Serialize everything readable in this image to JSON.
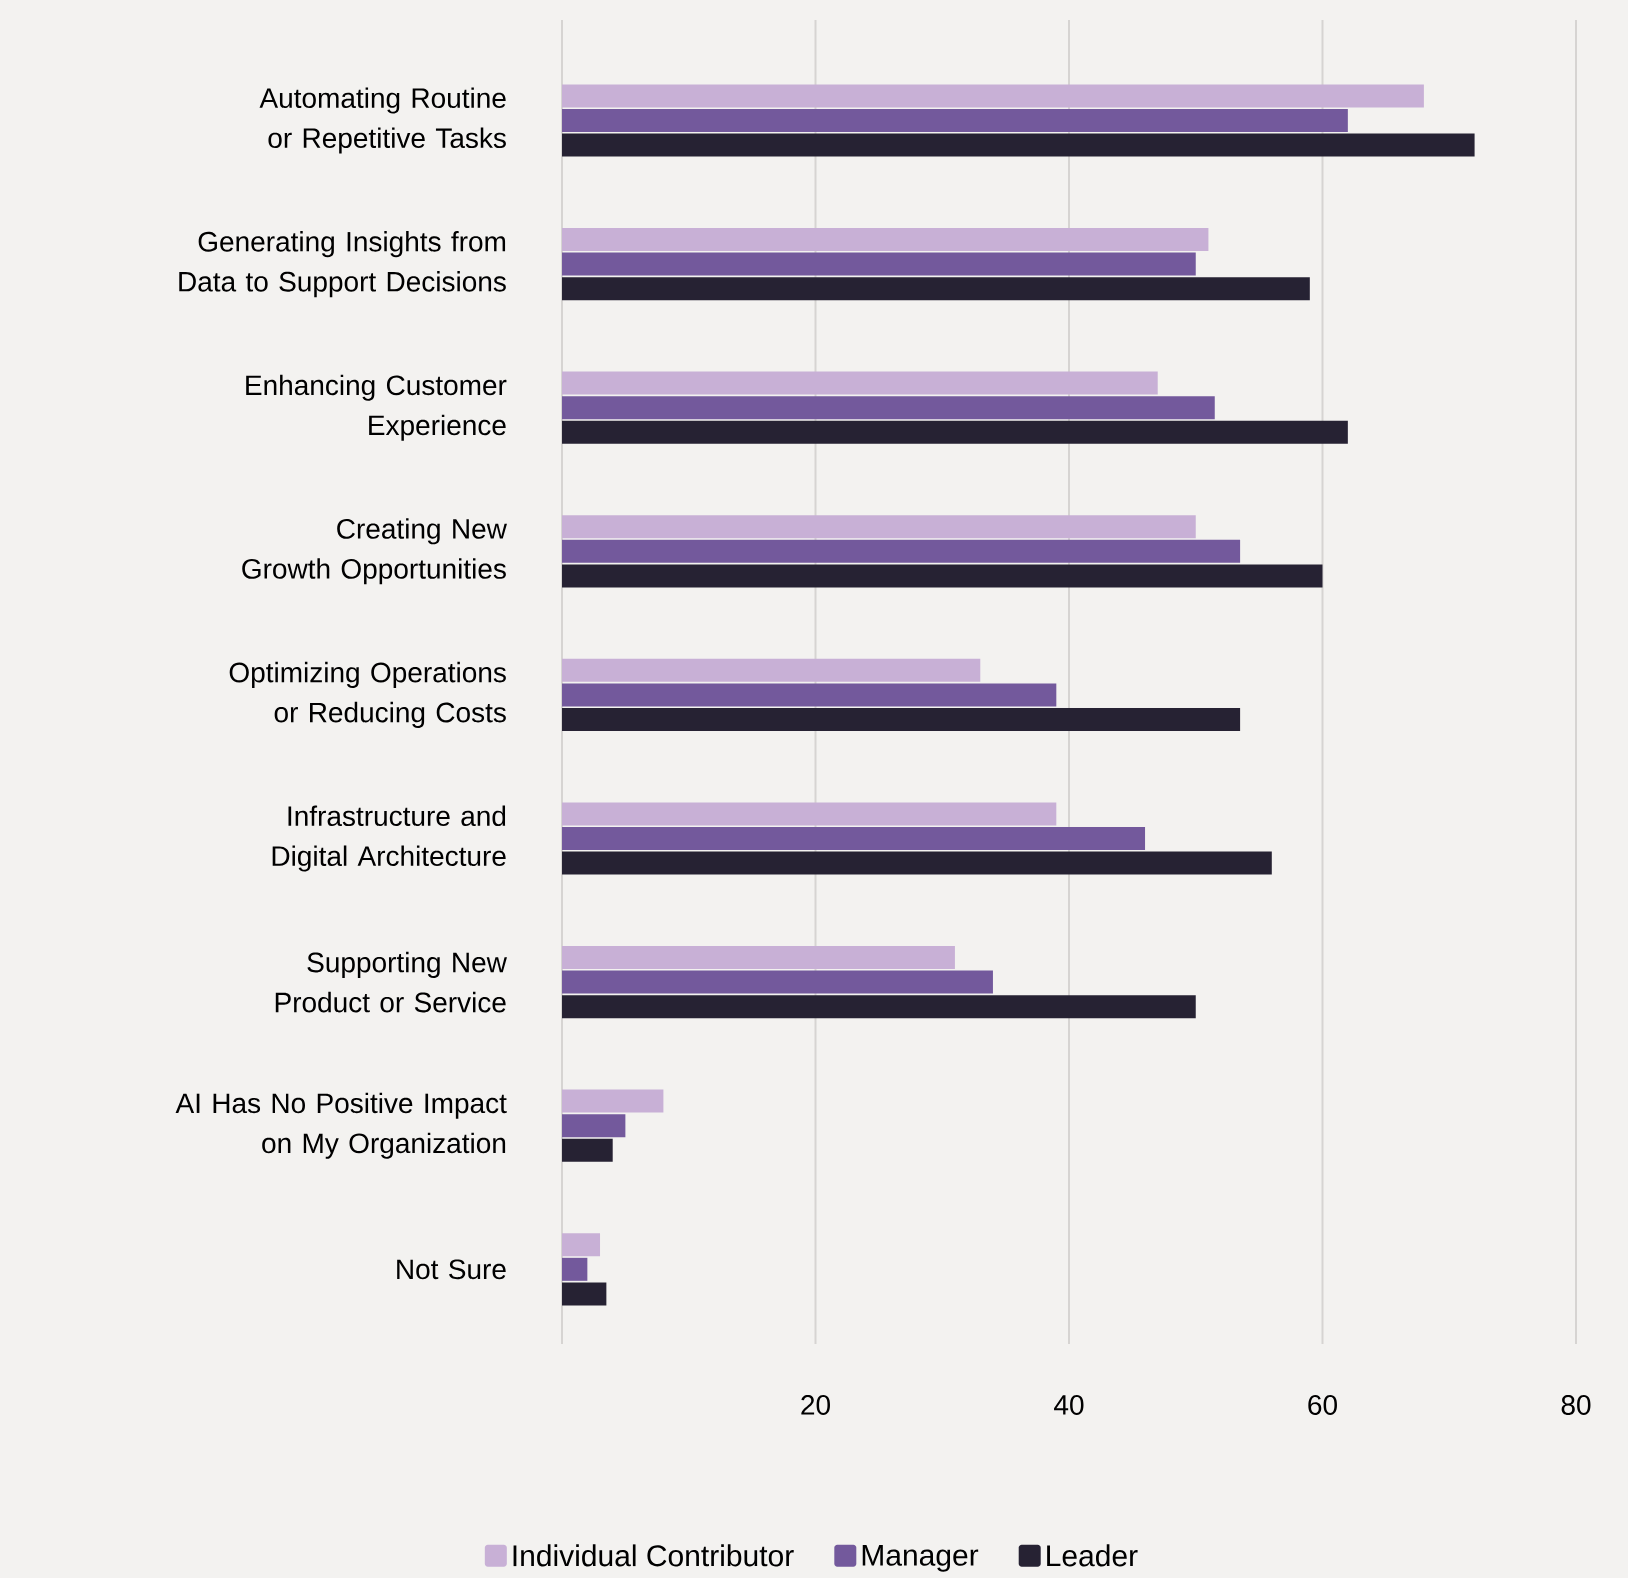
{
  "chart_data": {
    "type": "bar",
    "orientation": "horizontal",
    "categories": [
      "Automating Routine or Repetitive Tasks",
      "Generating Insights from Data to Support Decisions",
      "Enhancing Customer Experience",
      "Creating New Growth Opportunities",
      "Optimizing Operations or Reducing Costs",
      "Infrastructure and Digital Architecture",
      "Supporting New Product or Service",
      "AI Has No Positive Impact on My Organization",
      "Not Sure"
    ],
    "series": [
      {
        "name": "Individual Contributor",
        "color": "#c8b0d6",
        "values": [
          68,
          51,
          47,
          50,
          33,
          39,
          31,
          8,
          3
        ]
      },
      {
        "name": "Manager",
        "color": "#73599c",
        "values": [
          62,
          50,
          51.5,
          53.5,
          39,
          46,
          34,
          5,
          2
        ]
      },
      {
        "name": "Leader",
        "color": "#262233",
        "values": [
          72,
          59,
          62,
          60,
          53.5,
          56,
          50,
          4,
          3.5
        ]
      }
    ],
    "xlim": [
      0,
      80
    ],
    "xticks": [
      {
        "value": 0,
        "label": null
      },
      20,
      40,
      60,
      80
    ],
    "grid": "x",
    "legend": "bottom"
  }
}
